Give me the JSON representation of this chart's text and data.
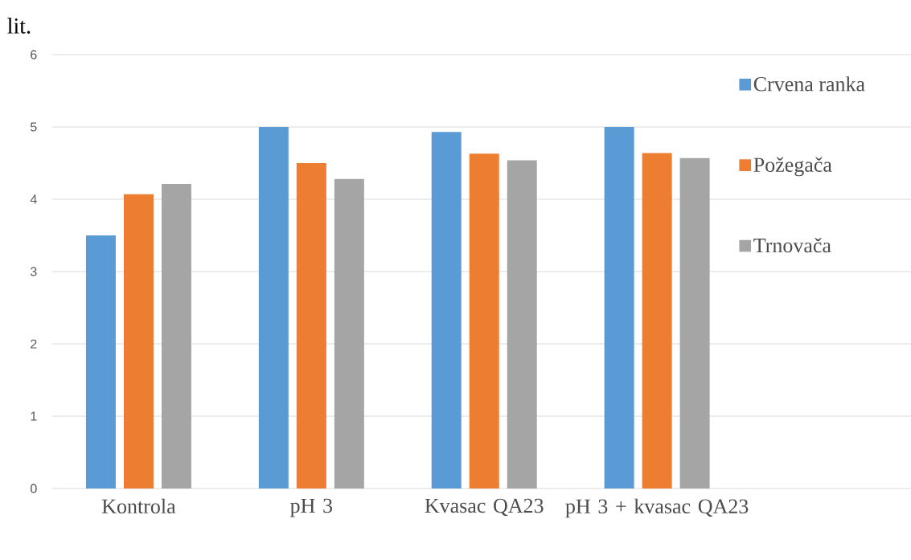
{
  "chart_data": {
    "type": "bar",
    "annotations": [
      "lit."
    ],
    "categories": [
      "Kontrola",
      "pH 3",
      "Kvasac QA23",
      "pH 3 + kvasac QA23"
    ],
    "series": [
      {
        "name": "Crvena ranka",
        "color": "#5b9bd5",
        "values": [
          3.5,
          5.0,
          4.93,
          5.0
        ]
      },
      {
        "name": "Požegača",
        "color": "#ed7d31",
        "values": [
          4.07,
          4.5,
          4.63,
          4.64
        ]
      },
      {
        "name": "Trnovača",
        "color": "#a5a5a5",
        "values": [
          4.21,
          4.28,
          4.54,
          4.57
        ]
      }
    ],
    "ylim": [
      0,
      6
    ],
    "yticks": [
      0,
      1,
      2,
      3,
      4,
      5,
      6
    ],
    "grid": "y",
    "legend": "right"
  }
}
